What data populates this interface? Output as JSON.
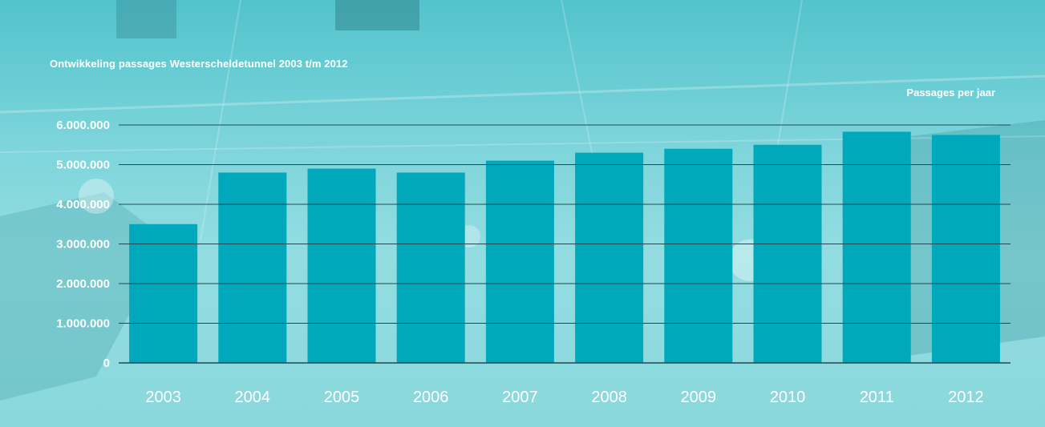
{
  "chart_data": {
    "type": "bar",
    "title": "Ontwikkeling passages Westerscheldetunnel 2003 t/m 2012",
    "ylabel": "Passages per jaar",
    "xlabel": "",
    "categories": [
      "2003",
      "2004",
      "2005",
      "2006",
      "2007",
      "2008",
      "2009",
      "2010",
      "2011",
      "2012"
    ],
    "values": [
      3500000,
      4800000,
      4900000,
      4800000,
      5100000,
      5300000,
      5400000,
      5500000,
      5830000,
      5750000
    ],
    "ylim": [
      0,
      6000000
    ],
    "yticks": [
      {
        "value": 0,
        "label": "0"
      },
      {
        "value": 1000000,
        "label": "1.000.000"
      },
      {
        "value": 2000000,
        "label": "2.000.000"
      },
      {
        "value": 3000000,
        "label": "3.000.000"
      },
      {
        "value": 4000000,
        "label": "4.000.000"
      },
      {
        "value": 5000000,
        "label": "5.000.000"
      },
      {
        "value": 6000000,
        "label": "6.000.000"
      }
    ],
    "grid": true,
    "bar_color": "#00a8bb",
    "grid_color": "#1f4a54",
    "label_color": "#ffffff"
  }
}
